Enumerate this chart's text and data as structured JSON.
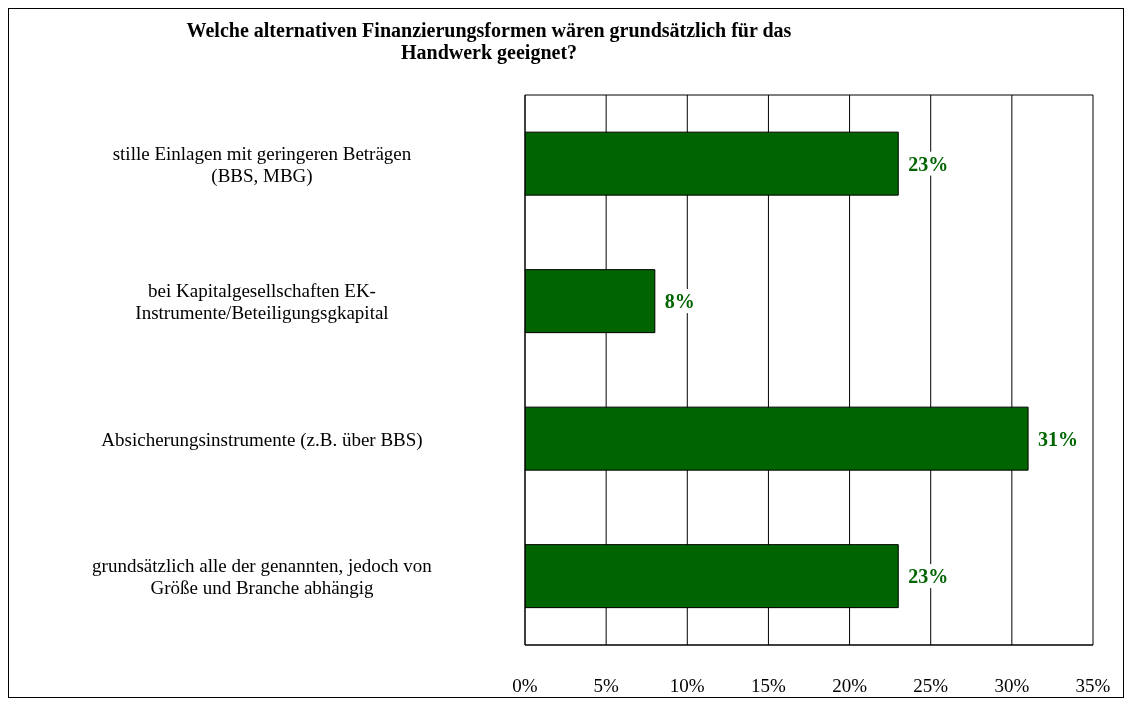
{
  "chart_data": {
    "type": "bar",
    "orientation": "horizontal",
    "title": "Welche alternativen Finanzierungsformen wären grundsätzlich für das Handwerk geeignet?",
    "categories": [
      "stille Einlagen mit geringeren Beträgen (BBS, MBG)",
      "bei Kapitalgesellschaften EK-Instrumente/Beteiligungsgkapital",
      "Absicherungsinstrumente (z.B. über BBS)",
      "grundsätzlich alle der genannten, jedoch von Größe und Branche abhängig"
    ],
    "values": [
      23,
      8,
      31,
      23
    ],
    "color": "#006400",
    "value_labels": [
      "23%",
      "8%",
      "31%",
      "23%"
    ],
    "xlim": [
      0,
      35
    ],
    "xticks": [
      {
        "value": 0,
        "label": "0%"
      },
      {
        "value": 5,
        "label": "5%"
      },
      {
        "value": 10,
        "label": "10%"
      },
      {
        "value": 15,
        "label": "15%"
      },
      {
        "value": 20,
        "label": "20%"
      },
      {
        "value": 25,
        "label": "25%"
      },
      {
        "value": 30,
        "label": "30%"
      },
      {
        "value": 35,
        "label": "35%"
      }
    ],
    "grid": "x"
  }
}
